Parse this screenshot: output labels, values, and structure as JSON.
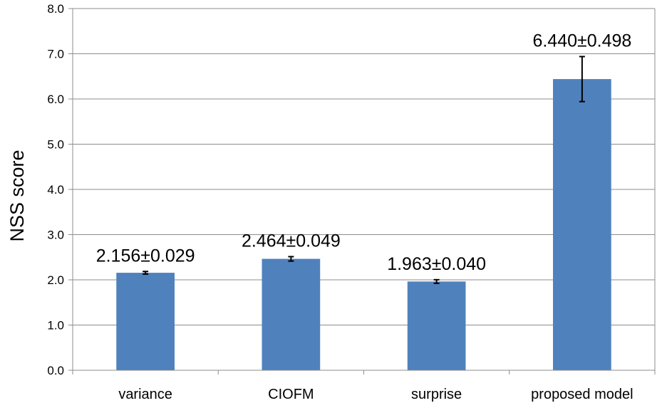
{
  "chart_data": {
    "type": "bar",
    "title": "",
    "xlabel": "",
    "ylabel": "NSS score",
    "ylim": [
      0,
      8
    ],
    "yticks": [
      "0.0",
      "1.0",
      "2.0",
      "3.0",
      "4.0",
      "5.0",
      "6.0",
      "7.0",
      "8.0"
    ],
    "grid": true,
    "legend": "none",
    "bar_color": "#4f81bd",
    "categories": [
      "variance",
      "CIOFM",
      "surprise",
      "proposed model"
    ],
    "values": [
      2.156,
      2.464,
      1.963,
      6.44
    ],
    "errors": [
      0.029,
      0.049,
      0.04,
      0.498
    ],
    "data_labels": [
      "2.156±0.029",
      "2.464±0.049",
      "1.963±0.040",
      "6.440±0.498"
    ]
  }
}
